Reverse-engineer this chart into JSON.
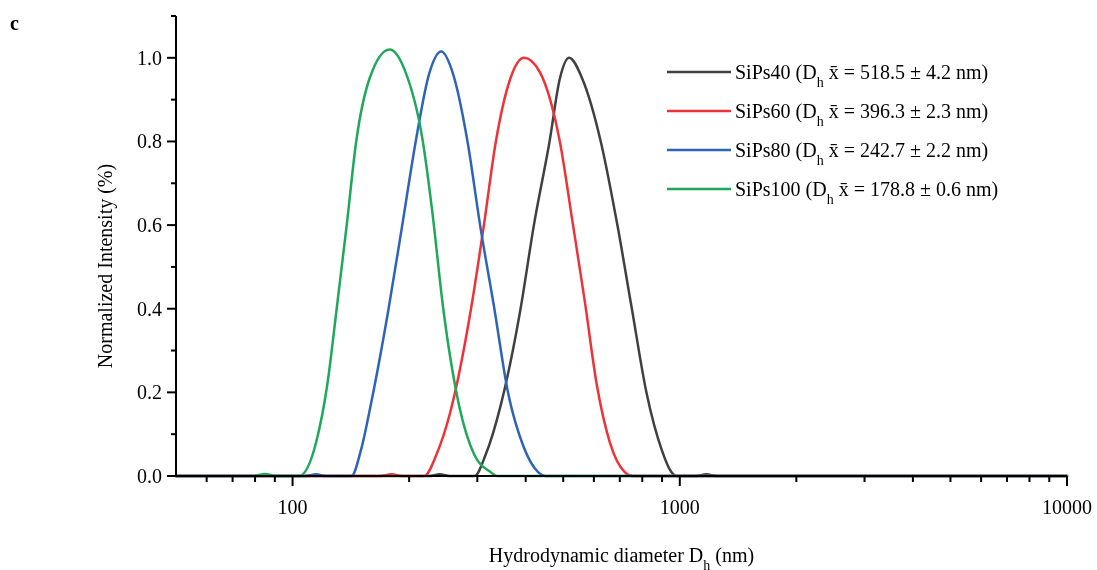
{
  "chart_data": {
    "type": "line",
    "title": "c",
    "xlabel": "Hydrodynamic diameter D$_{h}$ (nm)",
    "ylabel": "Normalized Intensity (%)",
    "log": "x",
    "xlim": [
      50,
      10000
    ],
    "ylim": [
      0,
      1.1
    ],
    "xticks": [
      {
        "value": 60,
        "label": null
      },
      {
        "value": 70,
        "label": null
      },
      {
        "value": 80,
        "label": null
      },
      {
        "value": 90,
        "label": null
      },
      100,
      {
        "value": 200,
        "label": null
      },
      {
        "value": 300,
        "label": null
      },
      {
        "value": 400,
        "label": null
      },
      {
        "value": 500,
        "label": null
      },
      {
        "value": 600,
        "label": null
      },
      {
        "value": 700,
        "label": null
      },
      {
        "value": 800,
        "label": null
      },
      {
        "value": 900,
        "label": null
      },
      1000,
      {
        "value": 2000,
        "label": null
      },
      {
        "value": 3000,
        "label": null
      },
      {
        "value": 4000,
        "label": null
      },
      {
        "value": 5000,
        "label": null
      },
      {
        "value": 6000,
        "label": null
      },
      {
        "value": 7000,
        "label": null
      },
      {
        "value": 8000,
        "label": null
      },
      {
        "value": 9000,
        "label": null
      },
      10000
    ],
    "yticks": [
      {
        "value": 0,
        "label": "0.0"
      },
      {
        "value": 0.1,
        "label": null
      },
      {
        "value": 0.2,
        "label": "0.2"
      },
      {
        "value": 0.3,
        "label": null
      },
      {
        "value": 0.4,
        "label": "0.4"
      },
      {
        "value": 0.5,
        "label": null
      },
      {
        "value": 0.6,
        "label": "0.6"
      },
      {
        "value": 0.7,
        "label": null
      },
      {
        "value": 0.8,
        "label": "0.8"
      },
      {
        "value": 0.9,
        "label": null
      },
      {
        "value": 1.0,
        "label": "1.0"
      },
      {
        "value": 1.1,
        "label": null
      }
    ],
    "grid": false,
    "legend": "top right",
    "marker": "none",
    "line_style": "solid",
    "series": [
      {
        "name": "SiPs40 (D$_{h}$ x̄ = 518.5 ± 4.2 nm)",
        "color": "#404040",
        "x": [
          50,
          225,
          240,
          255,
          295,
          315,
          345,
          388,
          420,
          461,
          490,
          518,
          560,
          625,
          690,
          752,
          820,
          900,
          950,
          980,
          1100,
          1170,
          1250,
          10000
        ],
        "values": [
          0,
          0,
          0.004,
          0,
          0,
          0.05,
          0.17,
          0.4,
          0.6,
          0.8,
          0.95,
          1.0,
          0.95,
          0.8,
          0.6,
          0.4,
          0.2,
          0.06,
          0.01,
          0,
          0,
          0.004,
          0,
          0
        ]
      },
      {
        "name": "SiPs60 (D$_{h}$ x̄ = 396.3 ± 2.3 nm)",
        "color": "#ee3338",
        "x": [
          50,
          168,
          180,
          192,
          219,
          235,
          255,
          289,
          312,
          335,
          365,
          396,
          435,
          490,
          530,
          568,
          610,
          660,
          720,
          757,
          10000
        ],
        "values": [
          0,
          0,
          0.004,
          0,
          0,
          0.05,
          0.15,
          0.4,
          0.6,
          0.8,
          0.95,
          1.0,
          0.966,
          0.8,
          0.6,
          0.42,
          0.22,
          0.08,
          0.01,
          0,
          0
        ]
      },
      {
        "name": "SiPs80 (D$_{h}$ x̄ = 242.7 ± 2.2 nm)",
        "color": "#2e64b8",
        "x": [
          50,
          108,
          115,
          122,
          142,
          150,
          160,
          177,
          192,
          208,
          225,
          242,
          260,
          283,
          305,
          332,
          360,
          395,
          430,
          451,
          10000
        ],
        "values": [
          0,
          0,
          0.004,
          0,
          0,
          0.06,
          0.18,
          0.4,
          0.6,
          0.8,
          0.96,
          1.015,
          0.96,
          0.8,
          0.6,
          0.4,
          0.2,
          0.07,
          0.01,
          0,
          0
        ]
      },
      {
        "name": "SiPs100 (D$_{h}$ x̄ = 178.8 ± 0.6 nm)",
        "color": "#1fa85a",
        "x": [
          50,
          79,
          85,
          91,
          104,
          115,
          123,
          130,
          138,
          146,
          158,
          178,
          195,
          217,
          229,
          245,
          269,
          295,
          324,
          339,
          10000
        ],
        "values": [
          0,
          0,
          0.005,
          0,
          0,
          0.08,
          0.22,
          0.4,
          0.6,
          0.8,
          0.95,
          1.02,
          0.97,
          0.8,
          0.64,
          0.4,
          0.17,
          0.05,
          0.01,
          0,
          0
        ]
      }
    ]
  }
}
